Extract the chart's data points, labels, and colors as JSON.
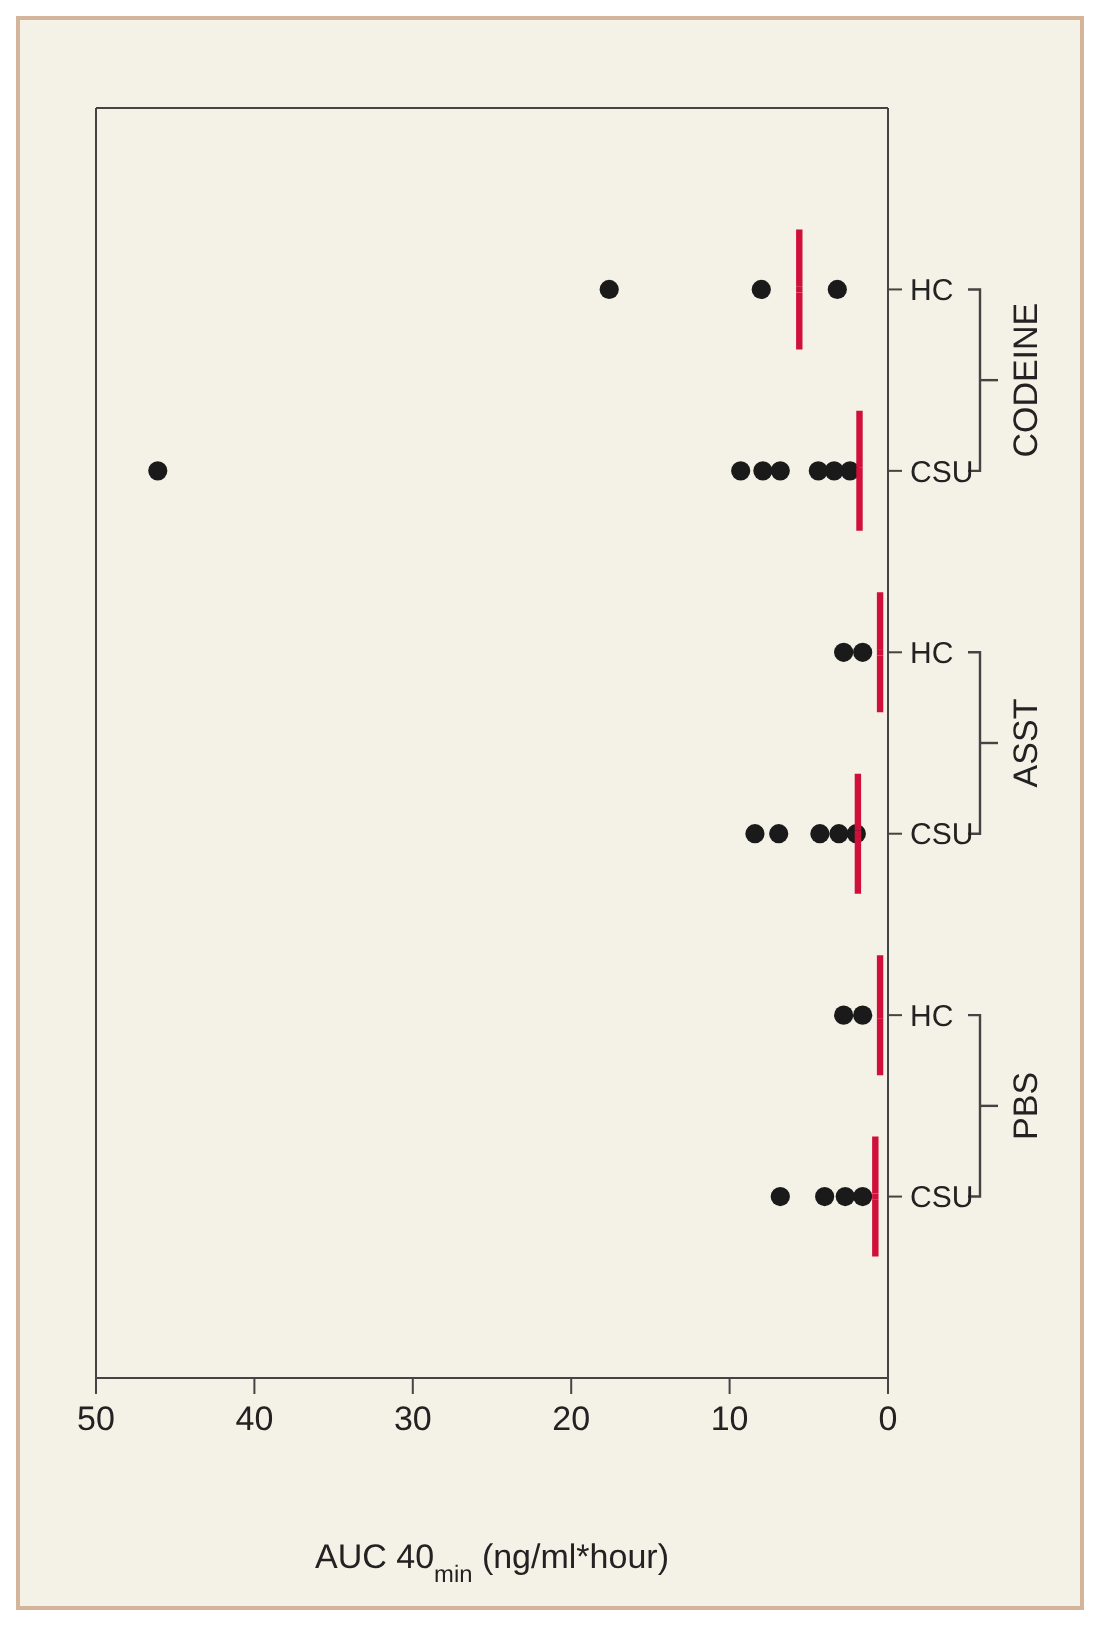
{
  "chart_data": {
    "type": "scatter",
    "orientation": "horizontal",
    "xlabel": "AUC 40$_{min}$ (ng/ml*hour)",
    "categories": [
      "HC",
      "CSU",
      "HC",
      "CSU",
      "HC",
      "CSU"
    ],
    "annotations": [
      "CODEINE",
      "ASST",
      "PBS"
    ],
    "xlim": [
      50,
      0
    ],
    "xticks": [
      50,
      40,
      30,
      20,
      10,
      0
    ],
    "marker": "circle",
    "series": [
      {
        "color": "#1a1a1a",
        "values": [
          3.2,
          2.4,
          1.6,
          2.0,
          1.6,
          1.6
        ]
      },
      {
        "color": "#1a1a1a",
        "values": [
          8.0,
          3.4,
          2.8,
          3.1,
          2.8,
          2.7
        ]
      },
      {
        "color": "#1a1a1a",
        "values": [
          17.6,
          4.4,
          null,
          4.3,
          null,
          4.0
        ]
      },
      {
        "color": "#1a1a1a",
        "values": [
          null,
          6.8,
          null,
          6.9,
          null,
          6.8
        ]
      },
      {
        "color": "#1a1a1a",
        "values": [
          null,
          7.9,
          null,
          8.4,
          null,
          null
        ]
      },
      {
        "color": "#1a1a1a",
        "values": [
          null,
          9.3,
          null,
          null,
          null,
          null
        ]
      },
      {
        "color": "#1a1a1a",
        "values": [
          null,
          46.1,
          null,
          null,
          null,
          null
        ]
      },
      {
        "type": "scatter",
        "marker": "square",
        "color": "#d0103a",
        "values": [
          5.6,
          1.8,
          0.5,
          1.9,
          0.5,
          0.8
        ]
      }
    ]
  }
}
